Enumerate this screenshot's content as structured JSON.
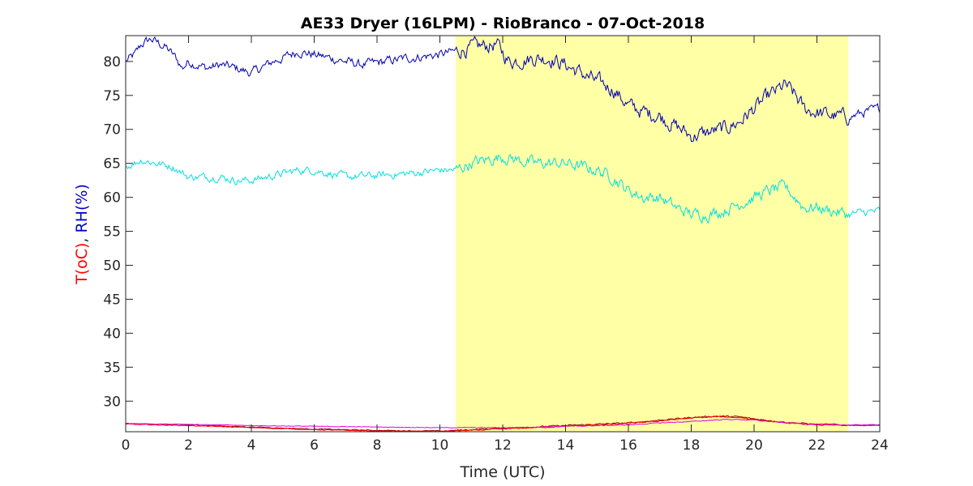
{
  "chart_data": {
    "type": "line",
    "title": "AE33 Dryer (16LPM)  - RioBranco - 07-Oct-2018",
    "xlabel": "Time (UTC)",
    "ylabel": {
      "part1": "T(oC)",
      "part1_color": "#ff0000",
      "separator": ", ",
      "part2": "RH(%)",
      "part2_color": "#0000cc"
    },
    "xlim": [
      0,
      24
    ],
    "ylim": [
      25.5,
      83.8
    ],
    "xticks": [
      0,
      2,
      4,
      6,
      8,
      10,
      12,
      14,
      16,
      18,
      20,
      22,
      24
    ],
    "yticks": [
      30,
      35,
      40,
      45,
      50,
      55,
      60,
      65,
      70,
      75,
      80
    ],
    "grid": false,
    "legend": "none",
    "shaded_region": {
      "x": [
        10.5,
        23
      ],
      "color": "#ffffa5"
    },
    "series": [
      {
        "color": "#0000b0",
        "noise": 0.55,
        "points": [
          [
            0,
            80
          ],
          [
            0.3,
            81
          ],
          [
            0.5,
            82.5
          ],
          [
            0.8,
            83.3
          ],
          [
            1.0,
            82.8
          ],
          [
            1.3,
            82
          ],
          [
            1.6,
            80.5
          ],
          [
            1.8,
            79
          ],
          [
            2.0,
            80
          ],
          [
            2.3,
            79.5
          ],
          [
            2.6,
            79
          ],
          [
            3.0,
            79.5
          ],
          [
            3.5,
            79
          ],
          [
            4.0,
            78.3
          ],
          [
            4.3,
            79
          ],
          [
            4.7,
            80
          ],
          [
            5.0,
            80.5
          ],
          [
            5.5,
            81.5
          ],
          [
            6.0,
            81
          ],
          [
            6.5,
            80.5
          ],
          [
            7.0,
            80
          ],
          [
            7.5,
            79.5
          ],
          [
            8.0,
            79.8
          ],
          [
            9.0,
            80.5
          ],
          [
            10.0,
            81
          ],
          [
            10.5,
            81.5
          ],
          [
            11.0,
            82
          ],
          [
            11.8,
            82.5
          ],
          [
            12.2,
            80
          ],
          [
            13.0,
            80.5
          ],
          [
            13.5,
            80.5
          ],
          [
            14.0,
            79.5
          ],
          [
            15.0,
            77
          ],
          [
            15.5,
            76
          ],
          [
            16.0,
            73.5
          ],
          [
            16.5,
            72.5
          ],
          [
            17.0,
            72
          ],
          [
            17.5,
            70.5
          ],
          [
            18.0,
            69
          ],
          [
            18.5,
            69.5
          ],
          [
            19.0,
            70
          ],
          [
            19.5,
            71
          ],
          [
            20.0,
            73
          ],
          [
            20.5,
            75
          ],
          [
            21.0,
            76.5
          ],
          [
            21.3,
            75
          ],
          [
            21.6,
            73
          ],
          [
            22.0,
            72.5
          ],
          [
            22.5,
            72
          ],
          [
            23.0,
            71.8
          ],
          [
            23.5,
            72.5
          ],
          [
            24.0,
            73
          ]
        ]
      },
      {
        "color": "#00e0e0",
        "noise": 0.45,
        "points": [
          [
            0,
            64.5
          ],
          [
            0.5,
            65.5
          ],
          [
            1.0,
            65
          ],
          [
            1.5,
            64.5
          ],
          [
            2.0,
            63
          ],
          [
            2.5,
            63
          ],
          [
            3.0,
            63
          ],
          [
            3.5,
            62.5
          ],
          [
            4.0,
            62.5
          ],
          [
            4.5,
            63
          ],
          [
            5.0,
            63.5
          ],
          [
            5.5,
            64
          ],
          [
            6.0,
            64
          ],
          [
            6.5,
            63.5
          ],
          [
            7.0,
            63
          ],
          [
            8.0,
            63.2
          ],
          [
            9.0,
            63.5
          ],
          [
            10.0,
            64
          ],
          [
            10.5,
            64
          ],
          [
            11.0,
            65
          ],
          [
            11.5,
            65.5
          ],
          [
            12.0,
            66
          ],
          [
            12.5,
            65.5
          ],
          [
            13.0,
            65
          ],
          [
            14.0,
            65
          ],
          [
            15.0,
            64
          ],
          [
            15.5,
            63
          ],
          [
            16.0,
            61
          ],
          [
            16.5,
            60
          ],
          [
            17.0,
            60
          ],
          [
            17.5,
            58.5
          ],
          [
            18.0,
            57.5
          ],
          [
            18.5,
            57.5
          ],
          [
            19.0,
            58
          ],
          [
            19.5,
            59
          ],
          [
            20.0,
            60
          ],
          [
            20.5,
            61
          ],
          [
            21.0,
            61.5
          ],
          [
            21.3,
            60
          ],
          [
            21.6,
            58.5
          ],
          [
            22.0,
            58.5
          ],
          [
            22.5,
            58
          ],
          [
            23.0,
            57.5
          ],
          [
            23.5,
            57.8
          ],
          [
            24.0,
            58
          ]
        ]
      },
      {
        "color": "#8b0000",
        "noise": 0.05,
        "points": [
          [
            0,
            26.7
          ],
          [
            2,
            26.5
          ],
          [
            4,
            26.2
          ],
          [
            6,
            25.9
          ],
          [
            8,
            25.7
          ],
          [
            10,
            25.6
          ],
          [
            11,
            25.8
          ],
          [
            12,
            26
          ],
          [
            13,
            26.2
          ],
          [
            14,
            26.4
          ],
          [
            15,
            26.6
          ],
          [
            16,
            26.8
          ],
          [
            17,
            27.2
          ],
          [
            18,
            27.6
          ],
          [
            18.8,
            27.8
          ],
          [
            19.5,
            27.7
          ],
          [
            20,
            27.4
          ],
          [
            21,
            26.9
          ],
          [
            22,
            26.6
          ],
          [
            23,
            26.5
          ],
          [
            24,
            26.5
          ]
        ]
      },
      {
        "color": "#ff0000",
        "noise": 0.04,
        "points": [
          [
            0,
            26.6
          ],
          [
            2,
            26.4
          ],
          [
            4,
            26.1
          ],
          [
            6,
            25.8
          ],
          [
            8,
            25.6
          ],
          [
            10,
            25.55
          ],
          [
            11,
            25.7
          ],
          [
            12,
            25.9
          ],
          [
            13,
            26.1
          ],
          [
            14,
            26.3
          ],
          [
            15,
            26.5
          ],
          [
            16,
            26.7
          ],
          [
            17,
            27.1
          ],
          [
            18,
            27.5
          ],
          [
            18.8,
            27.7
          ],
          [
            19.5,
            27.6
          ],
          [
            20,
            27.3
          ],
          [
            21,
            26.8
          ],
          [
            22,
            26.5
          ],
          [
            23,
            26.4
          ],
          [
            24,
            26.4
          ]
        ]
      },
      {
        "color": "#e000e0",
        "noise": 0.03,
        "points": [
          [
            0,
            26.7
          ],
          [
            2,
            26.6
          ],
          [
            4,
            26.4
          ],
          [
            6,
            26.3
          ],
          [
            8,
            26.2
          ],
          [
            10,
            26.1
          ],
          [
            11,
            26.1
          ],
          [
            12,
            26.1
          ],
          [
            13,
            26.2
          ],
          [
            14,
            26.3
          ],
          [
            15,
            26.4
          ],
          [
            16,
            26.5
          ],
          [
            17,
            26.8
          ],
          [
            18,
            27.0
          ],
          [
            19,
            27.3
          ],
          [
            19.5,
            27.3
          ],
          [
            20,
            27.2
          ],
          [
            21,
            26.8
          ],
          [
            22,
            26.6
          ],
          [
            23,
            26.5
          ],
          [
            24,
            26.5
          ]
        ]
      }
    ]
  }
}
